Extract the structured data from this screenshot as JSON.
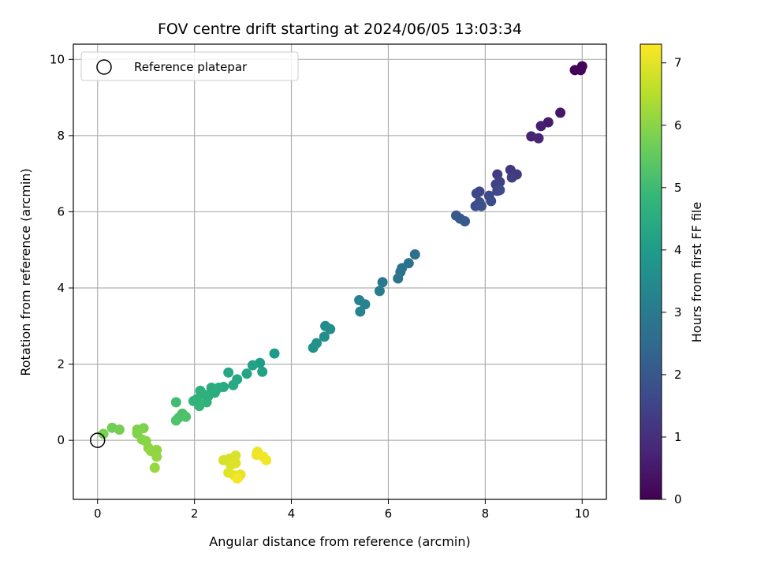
{
  "chart_data": {
    "type": "scatter",
    "title": "FOV centre drift starting at 2024/06/05 13:03:34",
    "xlabel": "Angular distance from reference (arcmin)",
    "ylabel": "Rotation from reference (arcmin)",
    "xlim": [
      -0.5,
      10.5
    ],
    "ylim": [
      -1.55,
      10.4
    ],
    "xticks": [
      0,
      2,
      4,
      6,
      8,
      10
    ],
    "yticks": [
      0,
      2,
      4,
      6,
      8,
      10
    ],
    "grid": true,
    "legend": {
      "placement": "top-left",
      "entries": [
        "Reference platepar"
      ]
    },
    "reference_point": {
      "x": 0,
      "y": 0,
      "label": "Reference platepar"
    },
    "colorbar": {
      "label": "Hours from first FF file",
      "min": 0,
      "max": 7.3,
      "ticks": [
        0,
        1,
        2,
        3,
        4,
        5,
        6,
        7
      ],
      "colormap": "viridis"
    },
    "points": [
      {
        "x": 9.85,
        "y": 9.72,
        "c": 0.05
      },
      {
        "x": 10.0,
        "y": 9.82,
        "c": 0.08
      },
      {
        "x": 9.97,
        "y": 9.72,
        "c": 0.1
      },
      {
        "x": 9.55,
        "y": 8.6,
        "c": 0.45
      },
      {
        "x": 9.3,
        "y": 8.35,
        "c": 0.55
      },
      {
        "x": 9.15,
        "y": 8.25,
        "c": 0.62
      },
      {
        "x": 8.95,
        "y": 7.98,
        "c": 0.7
      },
      {
        "x": 9.1,
        "y": 7.93,
        "c": 0.75
      },
      {
        "x": 8.52,
        "y": 7.1,
        "c": 1.2
      },
      {
        "x": 8.65,
        "y": 6.98,
        "c": 1.25
      },
      {
        "x": 8.25,
        "y": 6.98,
        "c": 1.3
      },
      {
        "x": 8.55,
        "y": 6.9,
        "c": 1.35
      },
      {
        "x": 8.3,
        "y": 6.78,
        "c": 1.4
      },
      {
        "x": 8.22,
        "y": 6.72,
        "c": 1.45
      },
      {
        "x": 8.25,
        "y": 6.55,
        "c": 1.5
      },
      {
        "x": 7.88,
        "y": 6.53,
        "c": 1.55
      },
      {
        "x": 7.82,
        "y": 6.48,
        "c": 1.58
      },
      {
        "x": 8.08,
        "y": 6.42,
        "c": 1.62
      },
      {
        "x": 8.3,
        "y": 6.57,
        "c": 1.65
      },
      {
        "x": 8.12,
        "y": 6.28,
        "c": 1.7
      },
      {
        "x": 7.88,
        "y": 6.25,
        "c": 1.75
      },
      {
        "x": 7.8,
        "y": 6.15,
        "c": 1.78
      },
      {
        "x": 7.92,
        "y": 6.15,
        "c": 1.82
      },
      {
        "x": 7.4,
        "y": 5.9,
        "c": 2.0
      },
      {
        "x": 7.48,
        "y": 5.82,
        "c": 2.05
      },
      {
        "x": 7.58,
        "y": 5.75,
        "c": 2.1
      },
      {
        "x": 6.55,
        "y": 4.88,
        "c": 2.65
      },
      {
        "x": 6.42,
        "y": 4.65,
        "c": 2.72
      },
      {
        "x": 6.28,
        "y": 4.52,
        "c": 2.78
      },
      {
        "x": 6.25,
        "y": 4.42,
        "c": 2.82
      },
      {
        "x": 6.2,
        "y": 4.25,
        "c": 2.88
      },
      {
        "x": 5.88,
        "y": 4.15,
        "c": 3.0
      },
      {
        "x": 5.82,
        "y": 3.92,
        "c": 3.05
      },
      {
        "x": 5.4,
        "y": 3.68,
        "c": 3.2
      },
      {
        "x": 5.52,
        "y": 3.57,
        "c": 3.25
      },
      {
        "x": 5.42,
        "y": 3.38,
        "c": 3.3
      },
      {
        "x": 4.7,
        "y": 3.0,
        "c": 3.5
      },
      {
        "x": 4.8,
        "y": 2.92,
        "c": 3.55
      },
      {
        "x": 4.68,
        "y": 2.72,
        "c": 3.6
      },
      {
        "x": 4.52,
        "y": 2.55,
        "c": 3.65
      },
      {
        "x": 4.45,
        "y": 2.43,
        "c": 3.7
      },
      {
        "x": 3.65,
        "y": 2.28,
        "c": 4.0
      },
      {
        "x": 3.35,
        "y": 2.03,
        "c": 4.1
      },
      {
        "x": 3.2,
        "y": 1.97,
        "c": 4.15
      },
      {
        "x": 3.4,
        "y": 1.8,
        "c": 4.2
      },
      {
        "x": 3.08,
        "y": 1.75,
        "c": 4.25
      },
      {
        "x": 2.7,
        "y": 1.78,
        "c": 4.3
      },
      {
        "x": 2.88,
        "y": 1.6,
        "c": 4.35
      },
      {
        "x": 2.8,
        "y": 1.45,
        "c": 4.4
      },
      {
        "x": 2.6,
        "y": 1.4,
        "c": 4.45
      },
      {
        "x": 2.5,
        "y": 1.38,
        "c": 4.48
      },
      {
        "x": 2.35,
        "y": 1.38,
        "c": 4.5
      },
      {
        "x": 2.42,
        "y": 1.25,
        "c": 4.55
      },
      {
        "x": 2.28,
        "y": 1.15,
        "c": 4.58
      },
      {
        "x": 2.12,
        "y": 1.3,
        "c": 4.62
      },
      {
        "x": 2.2,
        "y": 1.2,
        "c": 4.65
      },
      {
        "x": 2.05,
        "y": 1.08,
        "c": 4.7
      },
      {
        "x": 2.25,
        "y": 1.0,
        "c": 4.72
      },
      {
        "x": 1.98,
        "y": 1.03,
        "c": 4.75
      },
      {
        "x": 2.1,
        "y": 0.9,
        "c": 4.78
      },
      {
        "x": 1.62,
        "y": 1.0,
        "c": 5.05
      },
      {
        "x": 1.75,
        "y": 0.7,
        "c": 5.15
      },
      {
        "x": 1.68,
        "y": 0.6,
        "c": 5.2
      },
      {
        "x": 1.82,
        "y": 0.62,
        "c": 5.22
      },
      {
        "x": 1.62,
        "y": 0.52,
        "c": 5.25
      },
      {
        "x": 0.3,
        "y": 0.33,
        "c": 5.7
      },
      {
        "x": 0.45,
        "y": 0.28,
        "c": 5.75
      },
      {
        "x": 0.12,
        "y": 0.17,
        "c": 5.8
      },
      {
        "x": 0.82,
        "y": 0.28,
        "c": 5.85
      },
      {
        "x": 0.95,
        "y": 0.32,
        "c": 5.88
      },
      {
        "x": 0.82,
        "y": 0.18,
        "c": 5.9
      },
      {
        "x": 0.92,
        "y": 0.02,
        "c": 5.95
      },
      {
        "x": 1.0,
        "y": -0.02,
        "c": 5.98
      },
      {
        "x": 1.05,
        "y": -0.2,
        "c": 6.0
      },
      {
        "x": 1.22,
        "y": -0.25,
        "c": 6.05
      },
      {
        "x": 1.1,
        "y": -0.28,
        "c": 6.08
      },
      {
        "x": 1.22,
        "y": -0.43,
        "c": 6.1
      },
      {
        "x": 1.18,
        "y": -0.72,
        "c": 6.15
      },
      {
        "x": 2.6,
        "y": -0.52,
        "c": 6.85
      },
      {
        "x": 2.72,
        "y": -0.48,
        "c": 6.88
      },
      {
        "x": 2.85,
        "y": -0.4,
        "c": 6.9
      },
      {
        "x": 2.75,
        "y": -0.65,
        "c": 6.92
      },
      {
        "x": 2.85,
        "y": -0.6,
        "c": 6.95
      },
      {
        "x": 2.7,
        "y": -0.85,
        "c": 6.98
      },
      {
        "x": 2.82,
        "y": -0.92,
        "c": 7.0
      },
      {
        "x": 2.9,
        "y": -0.98,
        "c": 7.02
      },
      {
        "x": 2.95,
        "y": -0.9,
        "c": 7.05
      },
      {
        "x": 3.3,
        "y": -0.3,
        "c": 7.1
      },
      {
        "x": 3.28,
        "y": -0.38,
        "c": 7.12
      },
      {
        "x": 3.42,
        "y": -0.43,
        "c": 7.15
      },
      {
        "x": 3.48,
        "y": -0.52,
        "c": 7.18
      },
      {
        "x": 2.88,
        "y": -1.0,
        "c": 7.2
      }
    ]
  },
  "colors": {
    "viridis_stops": [
      "#440154",
      "#482878",
      "#3e4989",
      "#31688e",
      "#26828e",
      "#1f9e89",
      "#35b779",
      "#6ece58",
      "#b5de2b",
      "#fde725"
    ],
    "grid": "#b0b0b0",
    "axes": "#000000"
  }
}
